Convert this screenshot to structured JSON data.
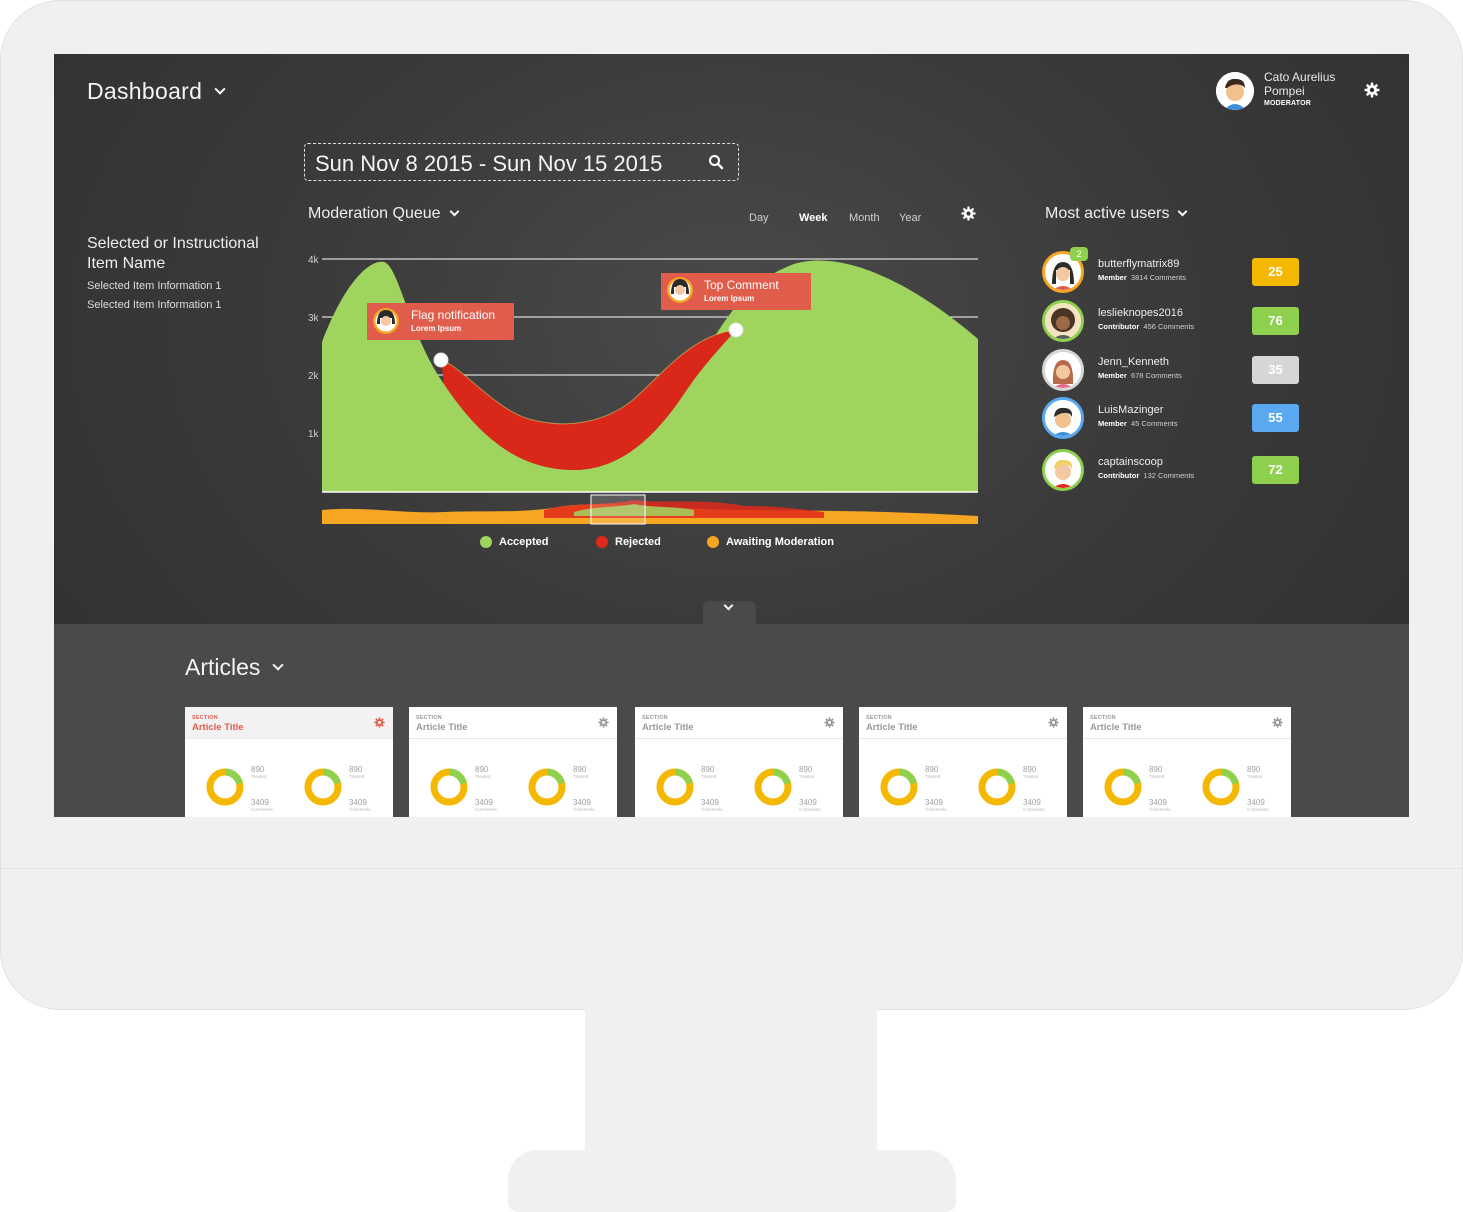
{
  "header": {
    "title": "Dashboard"
  },
  "user": {
    "name": "Cato Aurelius Pompei",
    "role": "MODERATOR"
  },
  "date_range": "Sun Nov 8 2015 - Sun Nov 15 2015",
  "selected": {
    "title": "Selected or Instructional Item Name",
    "info": [
      "Selected Item Information 1",
      "Selected Item Information 1"
    ]
  },
  "moderation": {
    "title": "Moderation Queue",
    "ranges": [
      "Day",
      "Week",
      "Month",
      "Year"
    ],
    "active_range": "Week",
    "y_ticks": [
      "4k",
      "3k",
      "2k",
      "1k"
    ],
    "callouts": [
      {
        "title": "Flag notification",
        "sub": "Lorem Ipsum"
      },
      {
        "title": "Top Comment",
        "sub": "Lorem Ipsum"
      }
    ],
    "legend": [
      {
        "label": "Accepted",
        "color": "#9fd55f"
      },
      {
        "label": "Rejected",
        "color": "#e0291a"
      },
      {
        "label": "Awaiting Moderation",
        "color": "#f5a623"
      }
    ]
  },
  "most_active": {
    "title": "Most active users",
    "users": [
      {
        "name": "butterflymatrix89",
        "role": "Member",
        "comments": "3814 Comments",
        "score": "25",
        "color": "#f5b800",
        "ring": "#f5a623",
        "notif": "2"
      },
      {
        "name": "leslieknopes2016",
        "role": "Contributor",
        "comments": "456 Comments",
        "score": "76",
        "color": "#8fd14f",
        "ring": "#8fd14f",
        "notif": ""
      },
      {
        "name": "Jenn_Kenneth",
        "role": "Member",
        "comments": "678 Comments",
        "score": "35",
        "color": "#d6d6d6",
        "ring": "#d6d6d6",
        "notif": ""
      },
      {
        "name": "LuisMazinger",
        "role": "Member",
        "comments": "45 Comments",
        "score": "55",
        "color": "#5aa9f0",
        "ring": "#5aa9f0",
        "notif": ""
      },
      {
        "name": "captainscoop",
        "role": "Contributor",
        "comments": "132 Comments",
        "score": "72",
        "color": "#8fd14f",
        "ring": "#8fd14f",
        "notif": ""
      }
    ]
  },
  "articles": {
    "title": "Articles",
    "cards": [
      {
        "section": "SECTION",
        "title": "Article Title",
        "stats": [
          "890",
          "Treated",
          "3409",
          "Comments"
        ]
      },
      {
        "section": "SECTION",
        "title": "Article Title",
        "stats": [
          "890",
          "Treated",
          "3409",
          "Comments"
        ]
      },
      {
        "section": "SECTION",
        "title": "Article Title",
        "stats": [
          "890",
          "Treated",
          "3409",
          "Comments"
        ]
      },
      {
        "section": "SECTION",
        "title": "Article Title",
        "stats": [
          "890",
          "Treated",
          "3409",
          "Comments"
        ]
      },
      {
        "section": "SECTION",
        "title": "Article Title",
        "stats": [
          "890",
          "Treated",
          "3409",
          "Comments"
        ]
      }
    ]
  }
}
